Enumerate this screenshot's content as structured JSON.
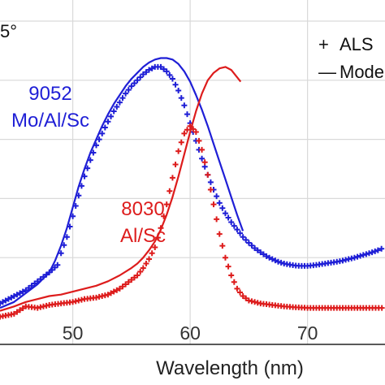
{
  "corner_text": "5°",
  "chart_data": {
    "type": "line",
    "xlabel": "Wavelength (nm)",
    "ylabel": "",
    "x_ticks": [
      50,
      60,
      70
    ],
    "xlim": [
      43.8,
      76.6
    ],
    "ylim": [
      0,
      1
    ],
    "grid": true,
    "legend": {
      "placement": "top-right",
      "entries": [
        {
          "marker": "+",
          "label": "ALS"
        },
        {
          "marker": "—",
          "label": "Mode"
        }
      ]
    },
    "annotations": [
      {
        "lines": [
          "9052",
          "Mo/Al/Sc"
        ],
        "color": "#1f1fd6"
      },
      {
        "lines": [
          "8030",
          "Al/Sc"
        ],
        "color": "#dd1c1c"
      }
    ],
    "series": [
      {
        "name": "9052 Mo/Al/Sc",
        "kind": "measured",
        "color": "#1f1fd6",
        "x": [
          43.8,
          45,
          46,
          47,
          48,
          48.7,
          49,
          49.5,
          50,
          50.5,
          51,
          51.5,
          52,
          52.5,
          53,
          53.5,
          54,
          54.5,
          55,
          55.5,
          56,
          56.5,
          57,
          57.5,
          58,
          58.5,
          59,
          59.5,
          60,
          60.5,
          61,
          61.5,
          62,
          62.5,
          63,
          63.5,
          64,
          64.5,
          65,
          65.5,
          66,
          66.5,
          67,
          67.5,
          68,
          68.5,
          69,
          69.5,
          70,
          70.5,
          71,
          71.5,
          72,
          72.5,
          73,
          73.5,
          74,
          74.5,
          75,
          75.5,
          76,
          76.6
        ],
        "y": [
          0.045,
          0.07,
          0.09,
          0.12,
          0.15,
          0.175,
          0.215,
          0.27,
          0.34,
          0.41,
          0.475,
          0.53,
          0.58,
          0.62,
          0.66,
          0.695,
          0.725,
          0.755,
          0.78,
          0.8,
          0.82,
          0.835,
          0.845,
          0.845,
          0.83,
          0.805,
          0.765,
          0.715,
          0.655,
          0.595,
          0.535,
          0.48,
          0.43,
          0.385,
          0.35,
          0.32,
          0.295,
          0.27,
          0.25,
          0.232,
          0.218,
          0.205,
          0.195,
          0.186,
          0.18,
          0.176,
          0.173,
          0.172,
          0.172,
          0.174,
          0.177,
          0.18,
          0.183,
          0.186,
          0.19,
          0.195,
          0.2,
          0.206,
          0.212,
          0.218,
          0.225,
          0.235
        ]
      },
      {
        "name": "9052 Mo/Al/Sc",
        "kind": "model",
        "color": "#1f1fd6",
        "x": [
          43.8,
          45,
          46,
          47,
          48,
          48.5,
          49,
          49.5,
          50,
          50.5,
          51,
          51.5,
          52,
          52.5,
          53,
          53.5,
          54,
          54.5,
          55,
          55.5,
          56,
          56.5,
          57,
          57.5,
          58,
          58.5,
          59,
          59.5,
          60,
          60.5,
          61,
          61.5,
          62,
          62.5,
          63,
          63.5,
          64,
          64.5
        ],
        "y": [
          0.03,
          0.05,
          0.08,
          0.11,
          0.15,
          0.19,
          0.24,
          0.3,
          0.37,
          0.44,
          0.5,
          0.555,
          0.6,
          0.645,
          0.685,
          0.72,
          0.75,
          0.78,
          0.805,
          0.825,
          0.845,
          0.86,
          0.87,
          0.875,
          0.875,
          0.87,
          0.855,
          0.83,
          0.795,
          0.75,
          0.7,
          0.645,
          0.585,
          0.525,
          0.465,
          0.405,
          0.345,
          0.29
        ]
      },
      {
        "name": "8030 Al/Sc",
        "kind": "measured",
        "color": "#dd1c1c",
        "x": [
          43.8,
          45,
          46,
          47,
          48,
          49,
          50,
          51,
          52,
          53,
          53.5,
          54,
          54.5,
          55,
          55.5,
          56,
          56.5,
          57,
          57.5,
          58,
          58.5,
          59,
          59.5,
          60,
          60.5,
          61,
          61.5,
          62,
          62.5,
          63,
          63.5,
          64,
          64.5,
          65,
          66,
          67,
          68,
          69,
          70,
          71,
          72,
          73,
          74,
          75,
          76.6
        ],
        "y": [
          0.0,
          0.01,
          0.035,
          0.03,
          0.04,
          0.045,
          0.05,
          0.06,
          0.065,
          0.075,
          0.085,
          0.095,
          0.11,
          0.125,
          0.14,
          0.165,
          0.195,
          0.235,
          0.3,
          0.38,
          0.47,
          0.56,
          0.62,
          0.645,
          0.625,
          0.565,
          0.48,
          0.38,
          0.28,
          0.2,
          0.14,
          0.095,
          0.07,
          0.055,
          0.045,
          0.04,
          0.035,
          0.032,
          0.03,
          0.03,
          0.03,
          0.03,
          0.03,
          0.03,
          0.03
        ]
      },
      {
        "name": "8030 Al/Sc",
        "kind": "model",
        "color": "#dd1c1c",
        "x": [
          43.8,
          45,
          46,
          47,
          48,
          49,
          50,
          51,
          52,
          53,
          54,
          55,
          55.5,
          56,
          56.5,
          57,
          57.5,
          58,
          58.5,
          59,
          59.5,
          60,
          60.5,
          61,
          61.5,
          62,
          62.5,
          63,
          63.5,
          64.3
        ],
        "y": [
          0.02,
          0.035,
          0.05,
          0.06,
          0.07,
          0.075,
          0.085,
          0.095,
          0.105,
          0.12,
          0.14,
          0.165,
          0.18,
          0.2,
          0.225,
          0.255,
          0.295,
          0.345,
          0.405,
          0.475,
          0.55,
          0.625,
          0.695,
          0.755,
          0.8,
          0.825,
          0.84,
          0.845,
          0.835,
          0.795
        ]
      }
    ]
  }
}
